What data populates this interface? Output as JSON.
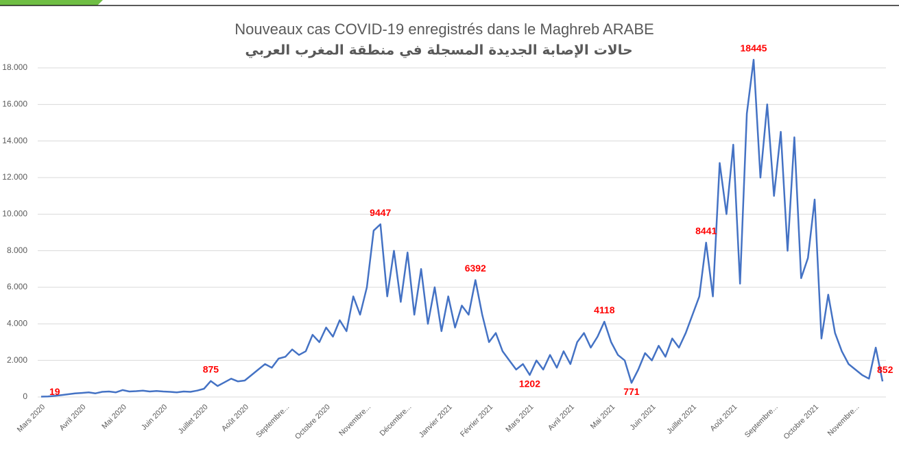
{
  "chart_data": {
    "type": "line",
    "title": "Nouveaux cas COVID-19 enregistrés dans le Maghreb ARABE",
    "subtitle": "حالات الإصابة الجديدة المسجلة في منطقة المغرب العربي",
    "categories": [
      "Mars 2020",
      null,
      null,
      null,
      null,
      null,
      "Avril 2020",
      null,
      null,
      null,
      null,
      null,
      "Mai 2020",
      null,
      null,
      null,
      null,
      null,
      "Juin 2020",
      null,
      null,
      null,
      null,
      null,
      "Juillet 2020",
      null,
      null,
      null,
      null,
      null,
      "Août 2020",
      null,
      null,
      null,
      null,
      null,
      "Septembre...",
      null,
      null,
      null,
      null,
      null,
      "Octobre 2020",
      null,
      null,
      null,
      null,
      null,
      "Novembre...",
      null,
      null,
      null,
      null,
      null,
      "Décembre...",
      null,
      null,
      null,
      null,
      null,
      "Janvier 2021",
      null,
      null,
      null,
      null,
      null,
      "Février 2021",
      null,
      null,
      null,
      null,
      null,
      "Mars 2021",
      null,
      null,
      null,
      null,
      null,
      "Avril 2021",
      null,
      null,
      null,
      null,
      null,
      "Mai 2021",
      null,
      null,
      null,
      null,
      null,
      "Juin 2021",
      null,
      null,
      null,
      null,
      null,
      "Juillet 2021",
      null,
      null,
      null,
      null,
      null,
      "Août 2021",
      null,
      null,
      null,
      null,
      null,
      "Septembre...",
      null,
      null,
      null,
      null,
      null,
      "Octobre 2021",
      null,
      null,
      null,
      null,
      null,
      "Novembre...",
      null,
      null,
      null,
      null
    ],
    "series": [
      {
        "name": "Nouveaux cas",
        "color": "#4472c4",
        "values": [
          19,
          30,
          60,
          100,
          150,
          200,
          220,
          250,
          200,
          280,
          300,
          250,
          380,
          300,
          320,
          350,
          300,
          330,
          300,
          280,
          250,
          300,
          280,
          350,
          450,
          875,
          600,
          800,
          1000,
          850,
          900,
          1200,
          1500,
          1800,
          1600,
          2100,
          2200,
          2600,
          2300,
          2500,
          3400,
          3000,
          3800,
          3300,
          4200,
          3600,
          5500,
          4500,
          6000,
          9100,
          9447,
          5500,
          8000,
          5200,
          7900,
          4500,
          7000,
          4000,
          6000,
          3600,
          5500,
          3800,
          5000,
          4500,
          6392,
          4500,
          3000,
          3500,
          2500,
          2000,
          1500,
          1800,
          1202,
          2000,
          1500,
          2300,
          1600,
          2500,
          1800,
          3000,
          3500,
          2700,
          3300,
          4118,
          3000,
          2300,
          2000,
          771,
          1500,
          2400,
          2000,
          2800,
          2200,
          3200,
          2700,
          3500,
          4500,
          5500,
          8441,
          5500,
          12800,
          10000,
          13800,
          6200,
          15500,
          18445,
          12000,
          16000,
          11000,
          14500,
          8000,
          14200,
          6500,
          7600,
          10800,
          3200,
          5600,
          3500,
          2500,
          1800,
          1500,
          1200,
          1000,
          2700,
          852
        ],
        "value_labels": [
          "19",
          null,
          null,
          null,
          null,
          null,
          null,
          null,
          null,
          null,
          null,
          null,
          null,
          null,
          null,
          null,
          null,
          null,
          null,
          null,
          null,
          null,
          null,
          null,
          null,
          "875",
          null,
          null,
          null,
          null,
          null,
          null,
          null,
          null,
          null,
          null,
          null,
          null,
          null,
          null,
          null,
          null,
          null,
          null,
          null,
          null,
          null,
          null,
          null,
          null,
          "9447",
          null,
          null,
          null,
          null,
          null,
          null,
          null,
          null,
          null,
          null,
          null,
          null,
          null,
          "6392",
          null,
          null,
          null,
          null,
          null,
          null,
          null,
          "1202",
          null,
          null,
          null,
          null,
          null,
          null,
          null,
          null,
          null,
          null,
          "4118",
          null,
          null,
          null,
          "771",
          null,
          null,
          null,
          null,
          null,
          null,
          null,
          null,
          null,
          null,
          "8441",
          null,
          null,
          null,
          null,
          null,
          null,
          "18445",
          null,
          null,
          null,
          null,
          null,
          null,
          null,
          null,
          null,
          null,
          null,
          null,
          null,
          null,
          null,
          null,
          null,
          null,
          "852"
        ]
      }
    ],
    "ylim": [
      0,
      18000
    ],
    "yticks": [
      0,
      {
        "value": 2000,
        "label": "2.000"
      },
      {
        "value": 4000,
        "label": "4.000"
      },
      {
        "value": 6000,
        "label": "6.000"
      },
      {
        "value": 8000,
        "label": "8.000"
      },
      {
        "value": 10000,
        "label": "10.000"
      },
      {
        "value": 12000,
        "label": "12.000"
      },
      {
        "value": 14000,
        "label": "14.000"
      },
      {
        "value": 16000,
        "label": "16.000"
      },
      {
        "value": 18000,
        "label": "18.000"
      }
    ],
    "grid": true,
    "label_color": "#ff0000"
  }
}
